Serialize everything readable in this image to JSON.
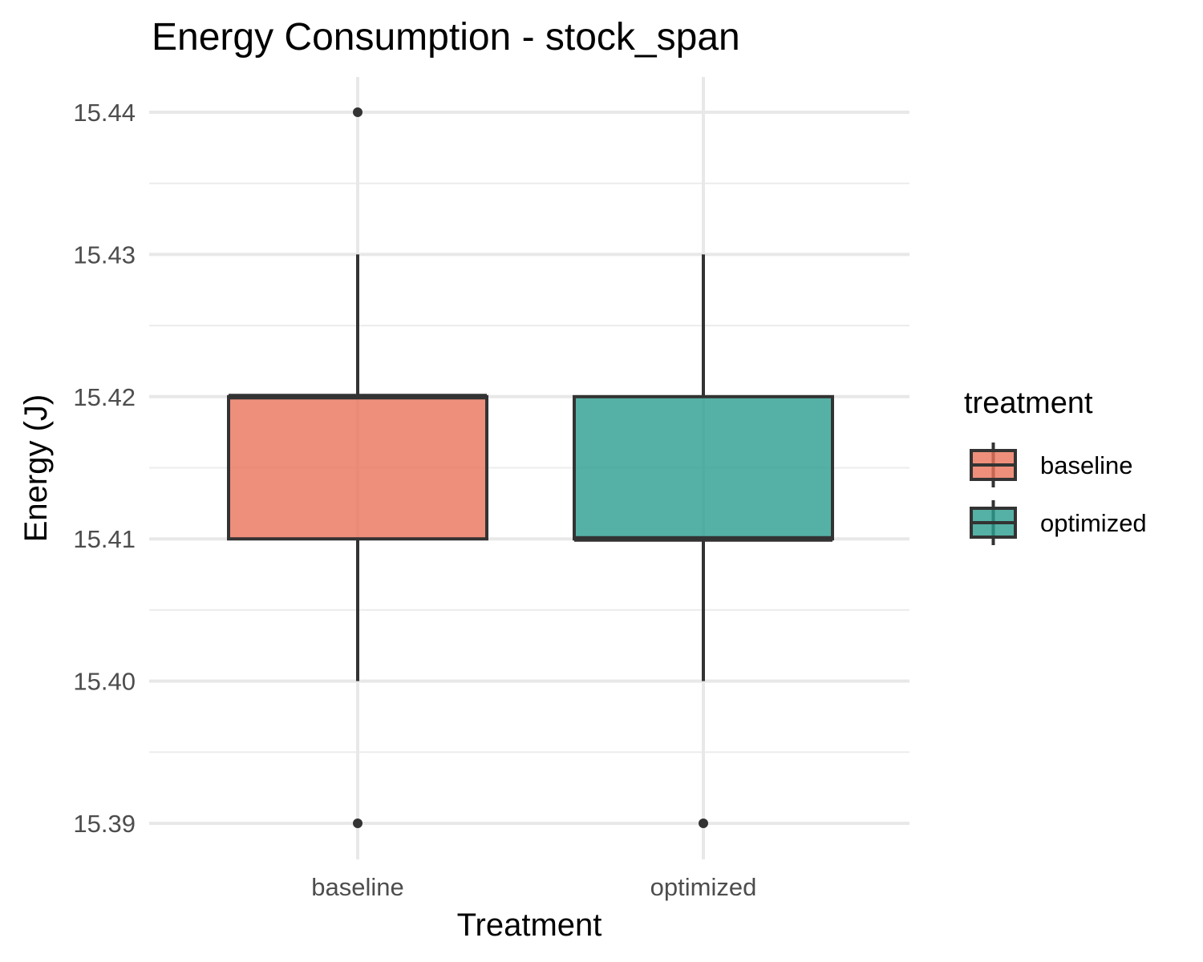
{
  "chart_data": {
    "type": "boxplot",
    "title": "Energy Consumption - stock_span",
    "xlabel": "Treatment",
    "ylabel": "Energy (J)",
    "categories": [
      "baseline",
      "optimized"
    ],
    "ylim": [
      15.3875,
      15.4425
    ],
    "yticks": [
      15.39,
      15.4,
      15.41,
      15.42,
      15.43,
      15.44
    ],
    "ytick_labels": [
      "15.39",
      "15.40",
      "15.41",
      "15.42",
      "15.43",
      "15.44"
    ],
    "grid": true,
    "legend": {
      "title": "treatment",
      "position": "right",
      "entries": [
        "baseline",
        "optimized"
      ]
    },
    "series": [
      {
        "name": "baseline",
        "color": "#E8735A",
        "whisker_low": 15.4,
        "q1": 15.41,
        "median": 15.42,
        "q3": 15.42,
        "whisker_high": 15.43,
        "outliers": [
          15.44,
          15.39
        ]
      },
      {
        "name": "optimized",
        "color": "#2A9D8F",
        "whisker_low": 15.4,
        "q1": 15.41,
        "median": 15.41,
        "q3": 15.42,
        "whisker_high": 15.43,
        "outliers": [
          15.39
        ]
      }
    ]
  }
}
